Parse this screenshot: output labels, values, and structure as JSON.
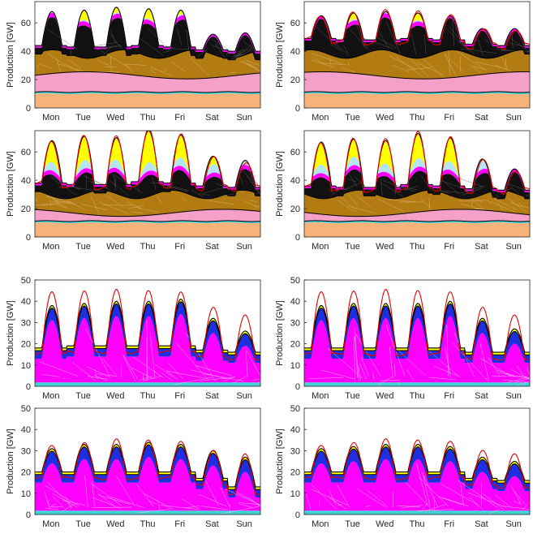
{
  "figure": {
    "background": "#ffffff"
  },
  "colors": {
    "base_orange": "#f7b27a",
    "cyan_line": "#3fd3d8",
    "pink_band": "#f4a0c8",
    "brown_band": "#b27c12",
    "black_band": "#111111",
    "magenta": "#ff00ff",
    "light_blue": "#b5e5f3",
    "yellow": "#ffff00",
    "blue": "#1f2fe0",
    "red_line": "#e60000",
    "axis": "#262626"
  },
  "chart_data": [
    {
      "type": "area",
      "stack": "brown",
      "ylabel": "Production [GW]",
      "ylim": [
        0,
        75
      ],
      "yticks": [
        0,
        20,
        40,
        60
      ],
      "xticklabels": [
        "Mon",
        "Tue",
        "Wed",
        "Thu",
        "Fri",
        "Sat",
        "Sun"
      ],
      "peaks": [
        68,
        69,
        71,
        70,
        69,
        52,
        53
      ],
      "troughs": [
        44,
        43,
        43,
        44,
        43,
        41,
        40
      ],
      "demand_line": false
    },
    {
      "type": "area",
      "stack": "brown",
      "ylabel": "Production [GW]",
      "ylim": [
        0,
        75
      ],
      "yticks": [
        0,
        20,
        40,
        60
      ],
      "xticklabels": [
        "Mon",
        "Tue",
        "Wed",
        "Thu",
        "Fri",
        "Sat",
        "Sun"
      ],
      "peaks": [
        65,
        67,
        68,
        67,
        65,
        56,
        56
      ],
      "troughs": [
        49,
        48,
        48,
        49,
        48,
        45,
        44
      ],
      "demand_line": true
    },
    {
      "type": "area",
      "stack": "brown",
      "ylabel": "Production [GW]",
      "ylim": [
        0,
        75
      ],
      "yticks": [
        0,
        20,
        40,
        60
      ],
      "xticklabels": [
        "Mon",
        "Tue",
        "Wed",
        "Thu",
        "Fri",
        "Sat",
        "Sun"
      ],
      "peaks": [
        68,
        71,
        70,
        75,
        72,
        57,
        54
      ],
      "troughs": [
        38,
        37,
        37,
        39,
        38,
        36,
        35
      ],
      "demand_line": true
    },
    {
      "type": "area",
      "stack": "brown",
      "ylabel": "Production [GW]",
      "ylim": [
        0,
        75
      ],
      "yticks": [
        0,
        20,
        40,
        60
      ],
      "xticklabels": [
        "Mon",
        "Tue",
        "Wed",
        "Thu",
        "Fri",
        "Sat",
        "Sun"
      ],
      "peaks": [
        67,
        69,
        68,
        73,
        70,
        55,
        48
      ],
      "troughs": [
        36,
        35,
        35,
        37,
        36,
        34,
        33
      ],
      "demand_line": true
    },
    {
      "type": "area",
      "stack": "magenta",
      "ylabel": "Production [GW]",
      "ylim": [
        0,
        50
      ],
      "yticks": [
        0,
        10,
        20,
        30,
        40,
        50
      ],
      "xticklabels": [
        "Mon",
        "Tue",
        "Wed",
        "Thu",
        "Fri",
        "Sat",
        "Sun"
      ],
      "peaks": [
        38,
        39,
        40,
        40,
        41,
        32,
        26
      ],
      "troughs": [
        18,
        19,
        19,
        19,
        19,
        17,
        16
      ],
      "demand": [
        45,
        45,
        45,
        45,
        45,
        37,
        33
      ],
      "demand_line": true
    },
    {
      "type": "area",
      "stack": "magenta",
      "ylabel": "Production [GW]",
      "ylim": [
        0,
        50
      ],
      "yticks": [
        0,
        10,
        20,
        30,
        40,
        50
      ],
      "xticklabels": [
        "Mon",
        "Tue",
        "Wed",
        "Thu",
        "Fri",
        "Sat",
        "Sun"
      ],
      "peaks": [
        38,
        39,
        39,
        39,
        40,
        32,
        27
      ],
      "troughs": [
        18,
        18,
        18,
        18,
        18,
        16,
        16
      ],
      "demand": [
        45,
        45,
        45,
        45,
        45,
        37,
        33
      ],
      "demand_line": true
    },
    {
      "type": "area",
      "stack": "magenta",
      "ylabel": "Production [GW]",
      "ylim": [
        0,
        50
      ],
      "yticks": [
        0,
        10,
        20,
        30,
        40,
        50
      ],
      "xticklabels": [
        "Mon",
        "Tue",
        "Wed",
        "Thu",
        "Fri",
        "Sat",
        "Sun"
      ],
      "peaks": [
        31,
        33,
        33,
        34,
        33,
        30,
        27
      ],
      "troughs": [
        20,
        20,
        20,
        20,
        20,
        17,
        13
      ],
      "demand": [
        33,
        34,
        35,
        35,
        35,
        30,
        28
      ],
      "demand_line": true
    },
    {
      "type": "area",
      "stack": "magenta",
      "ylabel": "Production [GW]",
      "ylim": [
        0,
        50
      ],
      "yticks": [
        0,
        10,
        20,
        30,
        40,
        50
      ],
      "xticklabels": [
        "Mon",
        "Tue",
        "Wed",
        "Thu",
        "Fri",
        "Sat",
        "Sun"
      ],
      "peaks": [
        31,
        32,
        33,
        33,
        32,
        27,
        25
      ],
      "troughs": [
        20,
        20,
        20,
        20,
        20,
        17,
        16
      ],
      "demand": [
        33,
        34,
        35,
        35,
        35,
        30,
        28
      ],
      "demand_line": true
    }
  ]
}
